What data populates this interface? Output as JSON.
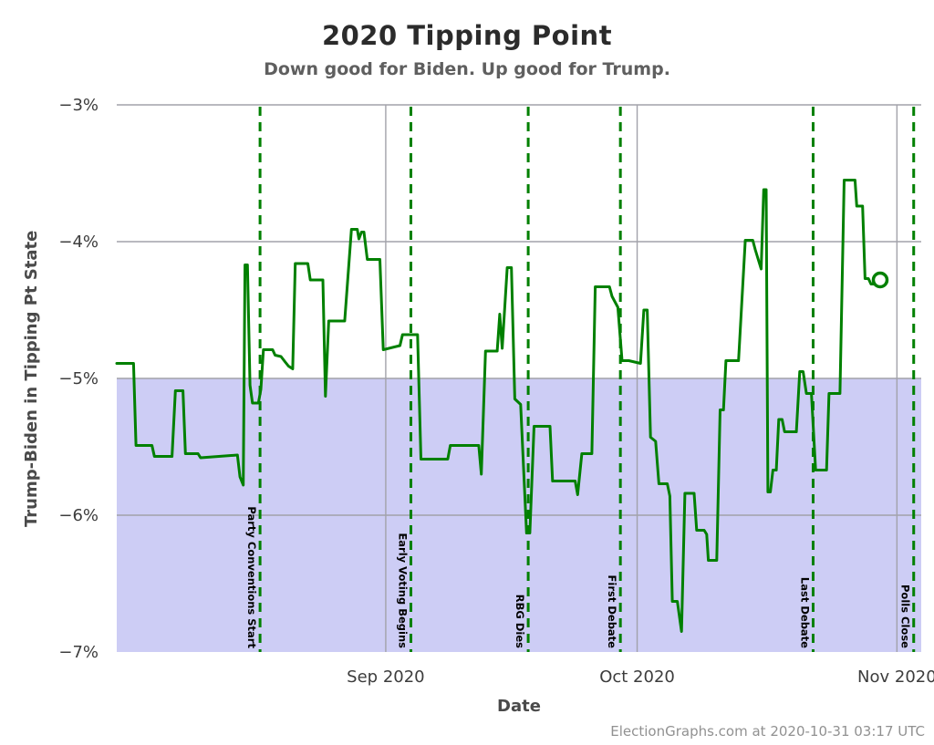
{
  "header": {
    "title": "2020 Tipping Point",
    "subtitle": "Down good for Biden. Up good for Trump."
  },
  "axes": {
    "y_title": "Trump-Biden in Tipping Pt State",
    "x_title": "Date"
  },
  "footer": {
    "attribution": "ElectionGraphs.com at 2020-10-31 03:17 UTC"
  },
  "colors": {
    "line_green": "#008000",
    "event_green": "#008000",
    "band_lavender": "#cdcdf5",
    "gridline_gray": "#a2a2aa",
    "tick_label": "#3c3c3c",
    "event_label": "#000000",
    "marker_fill": "#ffffff"
  },
  "chart_data": {
    "type": "line",
    "title": "2020 Tipping Point",
    "subtitle": "Down good for Biden. Up good for Trump.",
    "xlabel": "Date",
    "ylabel": "Trump-Biden in Tipping Pt State",
    "x_axis": {
      "epoch": "2020-07-30",
      "unit": "days since epoch",
      "domain_days": [
        0.9,
        96.9
      ],
      "ticks": [
        {
          "day": 33,
          "label": "Sep 2020"
        },
        {
          "day": 63,
          "label": "Oct 2020"
        },
        {
          "day": 94,
          "label": "Nov 2020"
        }
      ]
    },
    "y_axis": {
      "range": [
        -7,
        -3
      ],
      "unit": "%",
      "ticks": [
        {
          "value": -3,
          "label": "−3%"
        },
        {
          "value": -4,
          "label": "−4%"
        },
        {
          "value": -5,
          "label": "−5%"
        },
        {
          "value": -6,
          "label": "−6%"
        },
        {
          "value": -7,
          "label": "−7%"
        }
      ],
      "gridline_values": [
        -3,
        -4,
        -5,
        -6
      ]
    },
    "shaded_band": {
      "from": -7,
      "to": -5
    },
    "events": [
      {
        "day": 18,
        "date": "2020-08-17",
        "label": "Party Conventions Start"
      },
      {
        "day": 36,
        "date": "2020-09-04",
        "label": "Early Voting Begins"
      },
      {
        "day": 50,
        "date": "2020-09-18",
        "label": "RBG Dies"
      },
      {
        "day": 61,
        "date": "2020-09-29",
        "label": "First Debate"
      },
      {
        "day": 84,
        "date": "2020-10-22",
        "label": "Last Debate"
      },
      {
        "day": 96,
        "date": "2020-11-03",
        "label": "Polls Close"
      }
    ],
    "series": [
      {
        "name": "Trump-Biden margin in tipping point state (%)",
        "points": [
          [
            0.9,
            -4.89
          ],
          [
            2.9,
            -4.89
          ],
          [
            3.2,
            -5.49
          ],
          [
            5.1,
            -5.49
          ],
          [
            5.4,
            -5.57
          ],
          [
            7.5,
            -5.57
          ],
          [
            7.9,
            -5.09
          ],
          [
            8.8,
            -5.09
          ],
          [
            9.1,
            -5.55
          ],
          [
            10.6,
            -5.55
          ],
          [
            10.9,
            -5.58
          ],
          [
            15.3,
            -5.56
          ],
          [
            15.6,
            -5.72
          ],
          [
            16.0,
            -5.78
          ],
          [
            16.2,
            -4.17
          ],
          [
            16.5,
            -4.17
          ],
          [
            16.8,
            -5.05
          ],
          [
            17.1,
            -5.18
          ],
          [
            17.8,
            -5.18
          ],
          [
            18.1,
            -5.08
          ],
          [
            18.4,
            -4.79
          ],
          [
            19.5,
            -4.79
          ],
          [
            19.8,
            -4.83
          ],
          [
            20.5,
            -4.84
          ],
          [
            21.0,
            -4.88
          ],
          [
            21.4,
            -4.91
          ],
          [
            21.9,
            -4.93
          ],
          [
            22.2,
            -4.16
          ],
          [
            23.7,
            -4.16
          ],
          [
            24.0,
            -4.28
          ],
          [
            25.5,
            -4.28
          ],
          [
            25.8,
            -5.13
          ],
          [
            26.2,
            -4.58
          ],
          [
            28.1,
            -4.58
          ],
          [
            28.9,
            -3.91
          ],
          [
            29.6,
            -3.91
          ],
          [
            29.8,
            -3.98
          ],
          [
            30.1,
            -3.93
          ],
          [
            30.4,
            -3.93
          ],
          [
            30.8,
            -4.13
          ],
          [
            32.3,
            -4.13
          ],
          [
            32.7,
            -4.79
          ],
          [
            34.7,
            -4.76
          ],
          [
            35.0,
            -4.68
          ],
          [
            36.8,
            -4.68
          ],
          [
            37.2,
            -5.59
          ],
          [
            40.4,
            -5.59
          ],
          [
            40.7,
            -5.49
          ],
          [
            44.1,
            -5.49
          ],
          [
            44.4,
            -5.7
          ],
          [
            44.9,
            -4.8
          ],
          [
            46.3,
            -4.8
          ],
          [
            46.6,
            -4.53
          ],
          [
            46.9,
            -4.78
          ],
          [
            47.5,
            -4.19
          ],
          [
            48.0,
            -4.19
          ],
          [
            48.4,
            -5.15
          ],
          [
            49.1,
            -5.19
          ],
          [
            49.8,
            -6.13
          ],
          [
            50.2,
            -6.13
          ],
          [
            50.7,
            -5.35
          ],
          [
            52.6,
            -5.35
          ],
          [
            52.9,
            -5.75
          ],
          [
            55.6,
            -5.75
          ],
          [
            55.9,
            -5.85
          ],
          [
            56.4,
            -5.55
          ],
          [
            57.6,
            -5.55
          ],
          [
            58.0,
            -4.33
          ],
          [
            59.7,
            -4.33
          ],
          [
            60.0,
            -4.4
          ],
          [
            60.7,
            -4.48
          ],
          [
            61.2,
            -4.87
          ],
          [
            62.0,
            -4.87
          ],
          [
            63.4,
            -4.89
          ],
          [
            63.8,
            -4.5
          ],
          [
            64.2,
            -4.5
          ],
          [
            64.6,
            -5.43
          ],
          [
            65.2,
            -5.46
          ],
          [
            65.6,
            -5.77
          ],
          [
            66.6,
            -5.77
          ],
          [
            66.9,
            -5.86
          ],
          [
            67.2,
            -6.63
          ],
          [
            67.8,
            -6.63
          ],
          [
            68.3,
            -6.85
          ],
          [
            68.7,
            -5.84
          ],
          [
            69.8,
            -5.84
          ],
          [
            70.1,
            -6.11
          ],
          [
            71.0,
            -6.11
          ],
          [
            71.3,
            -6.14
          ],
          [
            71.5,
            -6.33
          ],
          [
            72.5,
            -6.33
          ],
          [
            72.9,
            -5.23
          ],
          [
            73.3,
            -5.23
          ],
          [
            73.6,
            -4.87
          ],
          [
            75.1,
            -4.87
          ],
          [
            75.9,
            -3.99
          ],
          [
            76.8,
            -3.99
          ],
          [
            77.1,
            -4.06
          ],
          [
            77.8,
            -4.2
          ],
          [
            78.1,
            -3.62
          ],
          [
            78.4,
            -3.62
          ],
          [
            78.6,
            -5.83
          ],
          [
            78.9,
            -5.83
          ],
          [
            79.2,
            -5.67
          ],
          [
            79.6,
            -5.67
          ],
          [
            79.9,
            -5.3
          ],
          [
            80.3,
            -5.3
          ],
          [
            80.6,
            -5.39
          ],
          [
            82.0,
            -5.39
          ],
          [
            82.4,
            -4.95
          ],
          [
            82.8,
            -4.95
          ],
          [
            83.2,
            -5.11
          ],
          [
            83.8,
            -5.11
          ],
          [
            84.1,
            -5.45
          ],
          [
            84.3,
            -5.67
          ],
          [
            85.6,
            -5.67
          ],
          [
            85.9,
            -5.11
          ],
          [
            87.2,
            -5.11
          ],
          [
            87.7,
            -3.55
          ],
          [
            89.0,
            -3.55
          ],
          [
            89.2,
            -3.74
          ],
          [
            89.9,
            -3.74
          ],
          [
            90.2,
            -4.27
          ],
          [
            90.6,
            -4.27
          ],
          [
            90.9,
            -4.31
          ],
          [
            91.6,
            -4.31
          ],
          [
            92.0,
            -4.28
          ]
        ]
      }
    ],
    "end_marker": {
      "day": 92.0,
      "value": -4.28,
      "style": "open-circle"
    },
    "grid": {
      "horizontal": true,
      "vertical_months": true,
      "legend": "none"
    }
  }
}
